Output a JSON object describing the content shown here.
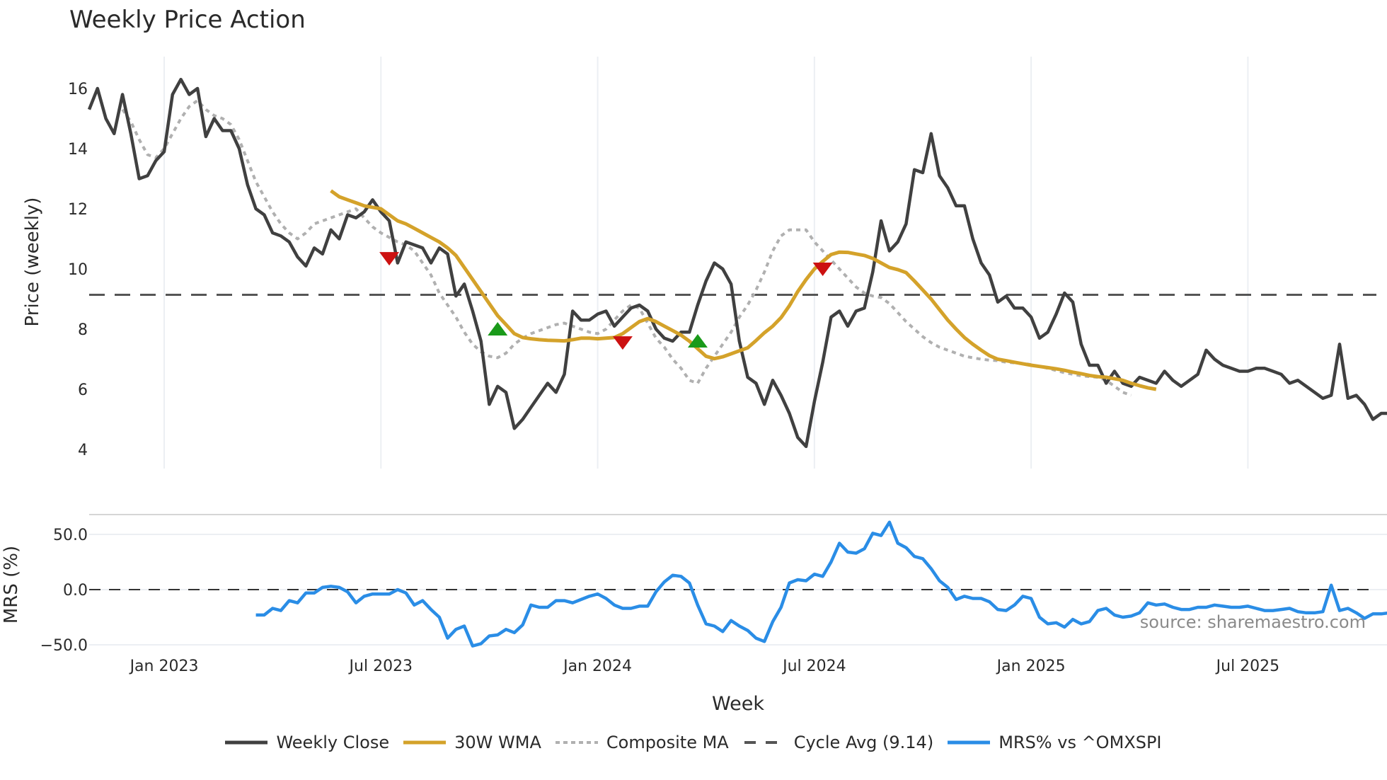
{
  "chart_data": [
    {
      "type": "line",
      "title": "Weekly Price Action",
      "xlabel": "Week",
      "ylabel": "Price (weekly)",
      "ylim": [
        3.4,
        17
      ],
      "yticks": [
        4,
        6,
        8,
        10,
        12,
        14,
        16
      ],
      "xticks": [
        "Jan 2023",
        "Jul 2023",
        "Jan 2024",
        "Jul 2024",
        "Jan 2025",
        "Jul 2025"
      ],
      "xtick_week_index": [
        9,
        35,
        61,
        87,
        113,
        139
      ],
      "grid": "vertical",
      "cycle_avg": 9.14,
      "series": [
        {
          "name": "Weekly Close",
          "color": "#404040",
          "style": "solid",
          "values": [
            15.3,
            16.0,
            15.0,
            14.5,
            15.8,
            14.5,
            13.0,
            13.1,
            13.6,
            13.9,
            15.8,
            16.3,
            15.8,
            16.0,
            14.4,
            15.0,
            14.6,
            14.6,
            14.0,
            12.8,
            12.0,
            11.8,
            11.2,
            11.1,
            10.9,
            10.4,
            10.1,
            10.7,
            10.5,
            11.3,
            11.0,
            11.8,
            11.7,
            11.9,
            12.3,
            11.9,
            11.6,
            10.2,
            10.9,
            10.8,
            10.7,
            10.2,
            10.7,
            10.5,
            9.1,
            9.5,
            8.6,
            7.6,
            5.5,
            6.1,
            5.9,
            4.7,
            5.0,
            5.4,
            5.8,
            6.2,
            5.9,
            6.5,
            8.6,
            8.3,
            8.3,
            8.5,
            8.6,
            8.1,
            8.4,
            8.7,
            8.8,
            8.6,
            8.0,
            7.7,
            7.6,
            7.9,
            7.9,
            8.8,
            9.6,
            10.2,
            10.0,
            9.5,
            7.6,
            6.4,
            6.2,
            5.5,
            6.3,
            5.8,
            5.2,
            4.4,
            4.1,
            5.6,
            6.9,
            8.4,
            8.6,
            8.1,
            8.6,
            8.7,
            9.9,
            11.6,
            10.6,
            10.9,
            11.5,
            13.3,
            13.2,
            14.5,
            13.1,
            12.7,
            12.1,
            12.1,
            11.0,
            10.2,
            9.8,
            8.9,
            9.1,
            8.7,
            8.7,
            8.4,
            7.7,
            7.9,
            8.5,
            9.2,
            8.9,
            7.5,
            6.8,
            6.8,
            6.2,
            6.6,
            6.2,
            6.1,
            6.4,
            6.3,
            6.2,
            6.6,
            6.3,
            6.1,
            6.3,
            6.5,
            7.3,
            7.0,
            6.8,
            6.7,
            6.6,
            6.6,
            6.7,
            6.7,
            6.6,
            6.5,
            6.2,
            6.3,
            6.1,
            5.9,
            5.7,
            5.8,
            7.5,
            5.7,
            5.8,
            5.5,
            5.0,
            5.2,
            5.2,
            5.3
          ]
        },
        {
          "name": "30W WMA",
          "color": "#d4a22a",
          "style": "solid",
          "start_index": 29,
          "values": [
            12.6,
            12.4,
            12.3,
            12.2,
            12.1,
            12.05,
            12.0,
            11.8,
            11.6,
            11.5,
            11.35,
            11.2,
            11.05,
            10.9,
            10.7,
            10.45,
            10.05,
            9.65,
            9.25,
            8.85,
            8.45,
            8.15,
            7.85,
            7.72,
            7.68,
            7.65,
            7.63,
            7.62,
            7.61,
            7.65,
            7.7,
            7.7,
            7.68,
            7.7,
            7.72,
            7.85,
            8.05,
            8.25,
            8.35,
            8.25,
            8.1,
            7.95,
            7.8,
            7.6,
            7.35,
            7.1,
            7.02,
            7.08,
            7.18,
            7.28,
            7.38,
            7.62,
            7.88,
            8.1,
            8.38,
            8.78,
            9.25,
            9.65,
            10.0,
            10.25,
            10.48,
            10.56,
            10.55,
            10.5,
            10.45,
            10.35,
            10.2,
            10.05,
            9.98,
            9.88,
            9.6,
            9.3,
            9.0,
            8.65,
            8.3,
            8.0,
            7.72,
            7.5,
            7.3,
            7.12,
            7.0,
            6.95,
            6.9,
            6.85,
            6.8,
            6.76,
            6.72,
            6.68,
            6.63,
            6.57,
            6.52,
            6.46,
            6.42,
            6.4,
            6.35,
            6.3,
            6.2,
            6.12,
            6.05,
            6.0
          ]
        },
        {
          "name": "Composite MA",
          "color": "#b0b0b0",
          "style": "dotted",
          "start_index": 4,
          "values": [
            15.3,
            14.9,
            14.3,
            13.8,
            13.7,
            14.0,
            14.5,
            15.0,
            15.4,
            15.6,
            15.3,
            15.1,
            15.0,
            14.8,
            14.3,
            13.6,
            12.9,
            12.4,
            11.9,
            11.5,
            11.2,
            11.0,
            11.2,
            11.5,
            11.6,
            11.7,
            11.8,
            11.9,
            12.0,
            11.7,
            11.4,
            11.2,
            11.05,
            10.9,
            10.8,
            10.6,
            10.2,
            9.8,
            9.2,
            8.8,
            8.4,
            7.9,
            7.5,
            7.25,
            7.1,
            7.05,
            7.2,
            7.5,
            7.7,
            7.85,
            7.95,
            8.05,
            8.15,
            8.2,
            8.1,
            8.0,
            7.9,
            7.85,
            8.0,
            8.3,
            8.6,
            8.8,
            8.7,
            8.2,
            7.7,
            7.4,
            7.0,
            6.7,
            6.3,
            6.2,
            6.7,
            7.1,
            7.5,
            7.9,
            8.4,
            8.8,
            9.3,
            9.9,
            10.6,
            11.1,
            11.3,
            11.3,
            11.3,
            10.9,
            10.6,
            10.3,
            10.0,
            9.7,
            9.4,
            9.2,
            9.1,
            9.05,
            8.85,
            8.55,
            8.25,
            8.0,
            7.75,
            7.55,
            7.4,
            7.3,
            7.2,
            7.1,
            7.05,
            7.0,
            6.97,
            6.95,
            6.9,
            6.88,
            6.86,
            6.82,
            6.76,
            6.7,
            6.62,
            6.55,
            6.5,
            6.45,
            6.42,
            6.4,
            6.3,
            6.1,
            5.9,
            5.8
          ]
        }
      ],
      "markers": [
        {
          "type": "sell",
          "week_index": 36,
          "value": 10.35,
          "color": "#cc1111"
        },
        {
          "type": "buy",
          "week_index": 49,
          "value": 8.0,
          "color": "#1a9a1a"
        },
        {
          "type": "sell",
          "week_index": 64,
          "value": 7.55,
          "color": "#cc1111"
        },
        {
          "type": "buy",
          "week_index": 73,
          "value": 7.6,
          "color": "#1a9a1a"
        },
        {
          "type": "sell",
          "week_index": 88,
          "value": 10.0,
          "color": "#cc1111"
        }
      ]
    },
    {
      "type": "line",
      "title": "",
      "xlabel": "Week",
      "ylabel": "MRS (%)",
      "ylim": [
        -55,
        70
      ],
      "yticks": [
        "50.0",
        "0.0",
        "−50.0"
      ],
      "ytick_values": [
        50,
        0,
        -50
      ],
      "zero_line": 0,
      "series": [
        {
          "name": "MRS% vs ^OMXSPI",
          "color": "#2a8de6",
          "style": "solid",
          "start_index": 20,
          "values": [
            -23,
            -23,
            -17,
            -19,
            -10,
            -12,
            -3,
            -3,
            2,
            3,
            2,
            -2,
            -12,
            -6,
            -4,
            -4,
            -4,
            0,
            -3,
            -14,
            -10,
            -18,
            -25,
            -44,
            -36,
            -33,
            -51,
            -49,
            -42,
            -41,
            -36,
            -39,
            -32,
            -14,
            -16,
            -16,
            -10,
            -10,
            -12,
            -9,
            -6,
            -4,
            -8,
            -14,
            -17,
            -17,
            -15,
            -15,
            -2,
            7,
            13,
            12,
            6,
            -14,
            -31,
            -33,
            -38,
            -28,
            -33,
            -37,
            -44,
            -47,
            -29,
            -16,
            6,
            9,
            8,
            14,
            12,
            25,
            42,
            34,
            33,
            37,
            51,
            49,
            61,
            42,
            38,
            30,
            28,
            19,
            8,
            2,
            -9,
            -6,
            -8,
            -8,
            -11,
            -18,
            -19,
            -14,
            -6,
            -8,
            -25,
            -31,
            -30,
            -34,
            -27,
            -31,
            -29,
            -19,
            -17,
            -23,
            -25,
            -24,
            -21,
            -12,
            -14,
            -13,
            -16,
            -18,
            -18,
            -16,
            -16,
            -14,
            -15,
            -16,
            -16,
            -15,
            -17,
            -19,
            -19,
            -18,
            -17,
            -20,
            -21,
            -21,
            -20,
            4,
            -19,
            -17,
            -21,
            -26,
            -22,
            -22,
            -21
          ]
        }
      ]
    }
  ],
  "header": {
    "title": "Weekly Price Action"
  },
  "axes": {
    "price_ylabel": "Price (weekly)",
    "mrs_ylabel": "MRS (%)",
    "xlabel": "Week",
    "price_ticks": [
      "16",
      "14",
      "12",
      "10",
      "8",
      "6",
      "4"
    ],
    "mrs_ticks": [
      "50.0",
      "0.0",
      "−50.0"
    ],
    "x_ticks": [
      "Jan 2023",
      "Jul 2023",
      "Jan 2024",
      "Jul 2024",
      "Jan 2025",
      "Jul 2025"
    ]
  },
  "legend": {
    "items": [
      {
        "label": "Weekly Close",
        "color": "#404040",
        "style": "solid"
      },
      {
        "label": "30W WMA",
        "color": "#d4a22a",
        "style": "solid"
      },
      {
        "label": "Composite MA",
        "color": "#b0b0b0",
        "style": "dotted"
      },
      {
        "label": "Cycle Avg (9.14)",
        "color": "#555555",
        "style": "dashed"
      },
      {
        "label": "MRS% vs ^OMXSPI",
        "color": "#2a8de6",
        "style": "solid"
      }
    ]
  },
  "source": "source: sharemaestro.com"
}
